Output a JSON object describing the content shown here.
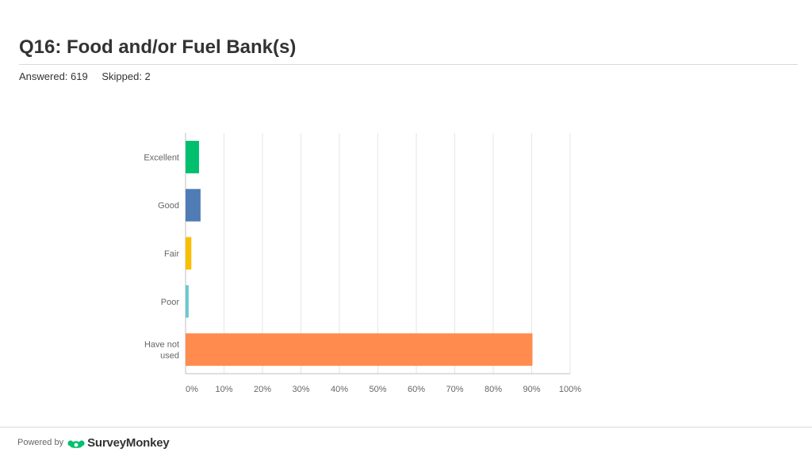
{
  "header": {
    "title": "Q16: Food and/or Fuel Bank(s)",
    "answered": "Answered: 619",
    "skipped": "Skipped: 2"
  },
  "footer": {
    "powered_by": "Powered by",
    "brand": "SurveyMonkey",
    "logo_icon": "surveymonkey-logo-icon",
    "brand_color": "#00bf6f"
  },
  "chart_data": {
    "type": "bar",
    "orientation": "horizontal",
    "categories": [
      "Excellent",
      "Good",
      "Fair",
      "Poor",
      "Have not used"
    ],
    "values": [
      3.5,
      3.9,
      1.5,
      0.8,
      90.2
    ],
    "colors": [
      "#00bf6f",
      "#507cb6",
      "#f9be00",
      "#6bc8cd",
      "#ff8b4f"
    ],
    "xlim": [
      0,
      100
    ],
    "xticks": [
      "0%",
      "10%",
      "20%",
      "30%",
      "40%",
      "50%",
      "60%",
      "70%",
      "80%",
      "90%",
      "100%"
    ],
    "grid": true,
    "title": "",
    "xlabel": "",
    "ylabel": ""
  }
}
